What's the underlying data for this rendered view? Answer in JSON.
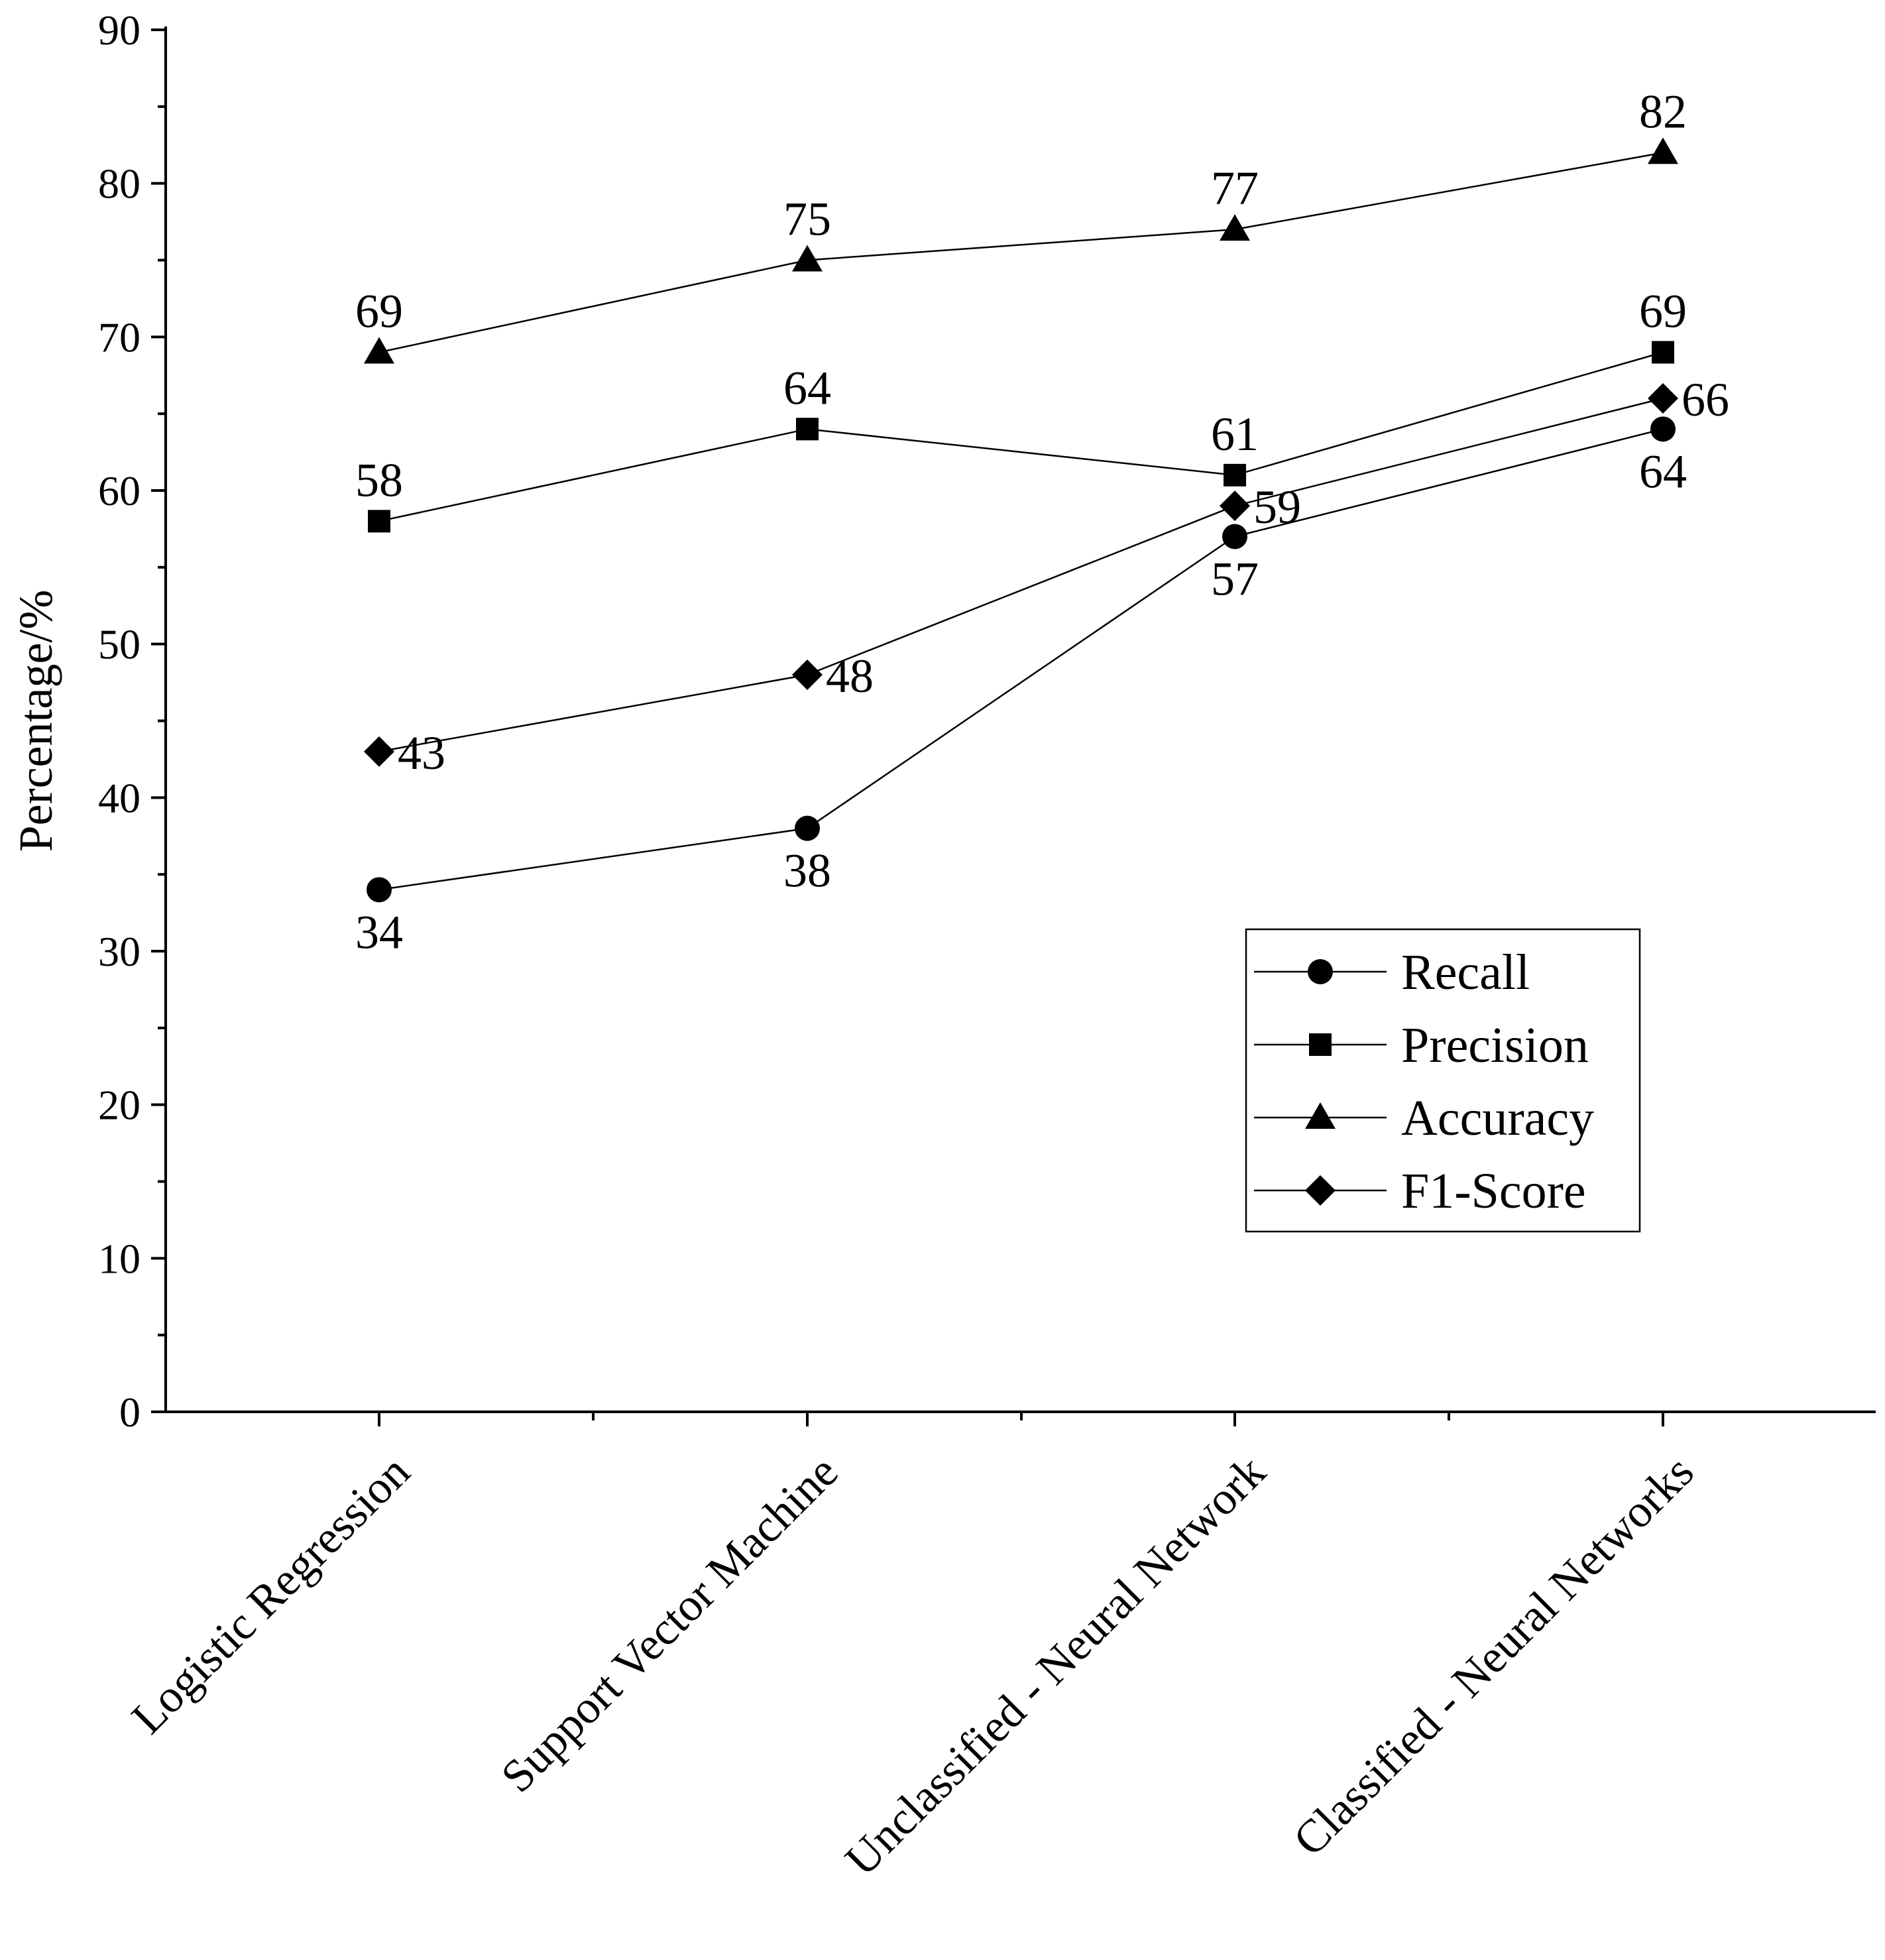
{
  "chart_data": {
    "type": "line",
    "title": "",
    "xlabel": "",
    "ylabel": "Percentage/%",
    "ylim": [
      0,
      90
    ],
    "yticks": [
      0,
      10,
      20,
      30,
      40,
      50,
      60,
      70,
      80,
      90
    ],
    "categories": [
      "Logistic Regression",
      "Support Vector Machine",
      "Unclassified - Neural Network",
      "Classified - Neural Networks"
    ],
    "series": [
      {
        "name": "Recall",
        "marker": "circle",
        "values": [
          34,
          38,
          57,
          64
        ],
        "label_pos": [
          "below",
          "below",
          "below",
          "below"
        ]
      },
      {
        "name": "Precision",
        "marker": "square",
        "values": [
          58,
          64,
          61,
          69
        ],
        "label_pos": [
          "above",
          "above",
          "above",
          "above"
        ]
      },
      {
        "name": "Accuracy",
        "marker": "triangle",
        "values": [
          69,
          75,
          77,
          82
        ],
        "label_pos": [
          "above",
          "above",
          "above",
          "above"
        ]
      },
      {
        "name": "F1-Score",
        "marker": "diamond",
        "values": [
          43,
          48,
          59,
          66
        ],
        "label_pos": [
          "right",
          "right",
          "right",
          "right"
        ]
      }
    ],
    "legend": {
      "position": "center-right",
      "entries": [
        "Recall",
        "Precision",
        "Accuracy",
        "F1-Score"
      ]
    },
    "grid": false,
    "colors": {
      "line": "#000000",
      "marker": "#000000",
      "background": "#ffffff"
    }
  }
}
